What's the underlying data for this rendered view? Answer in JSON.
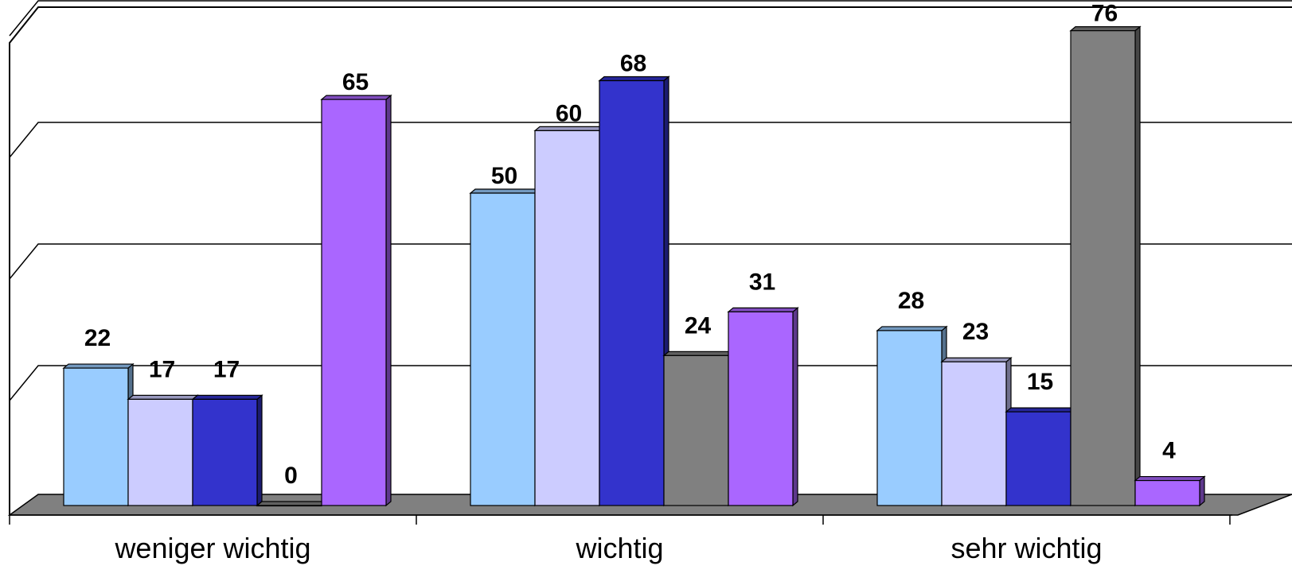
{
  "chart_data": {
    "type": "bar",
    "title": "",
    "xlabel": "",
    "ylabel": "",
    "categories": [
      "weniger wichtig",
      "wichtig",
      "sehr wichtig"
    ],
    "series": [
      {
        "values": [
          22,
          50,
          28
        ],
        "color": "#99CCFF"
      },
      {
        "values": [
          17,
          60,
          23
        ],
        "color": "#CCCCFF"
      },
      {
        "values": [
          17,
          68,
          15
        ],
        "color": "#3333CC"
      },
      {
        "values": [
          0,
          24,
          76
        ],
        "color": "#808080"
      },
      {
        "values": [
          65,
          31,
          4
        ],
        "color": "#AA66FF"
      }
    ],
    "ylim": [
      0,
      80
    ],
    "grid": true,
    "data_labels": true,
    "style": "3d-column"
  }
}
